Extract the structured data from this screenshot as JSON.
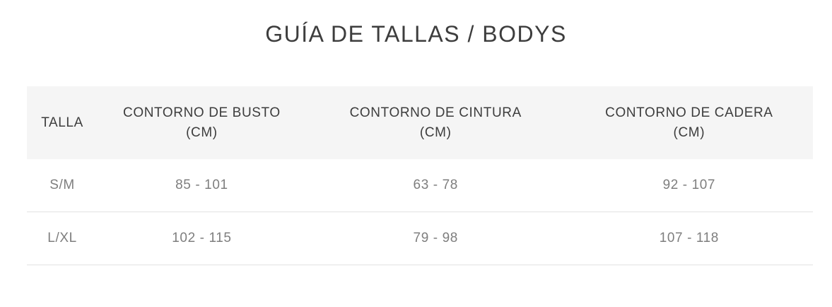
{
  "page": {
    "title": "GUÍA DE TALLAS / BODYS"
  },
  "table": {
    "columns": [
      {
        "key": "talla",
        "label": "TALLA"
      },
      {
        "key": "busto",
        "label": "CONTORNO DE BUSTO\n(CM)"
      },
      {
        "key": "cintura",
        "label": "CONTORNO DE CINTURA\n(CM)"
      },
      {
        "key": "cadera",
        "label": "CONTORNO DE CADERA\n(CM)"
      }
    ],
    "rows": [
      {
        "talla": "S/M",
        "busto": "85 - 101",
        "cintura": "63 - 78",
        "cadera": "92 - 107"
      },
      {
        "talla": "L/XL",
        "busto": "102 - 115",
        "cintura": "79 - 98",
        "cadera": "107 - 118"
      }
    ]
  },
  "colors": {
    "background": "#ffffff",
    "header_background": "#f5f5f5",
    "heading_text": "#3d3d3d",
    "value_text": "#7e7e7e",
    "divider": "#e2e2e2"
  }
}
